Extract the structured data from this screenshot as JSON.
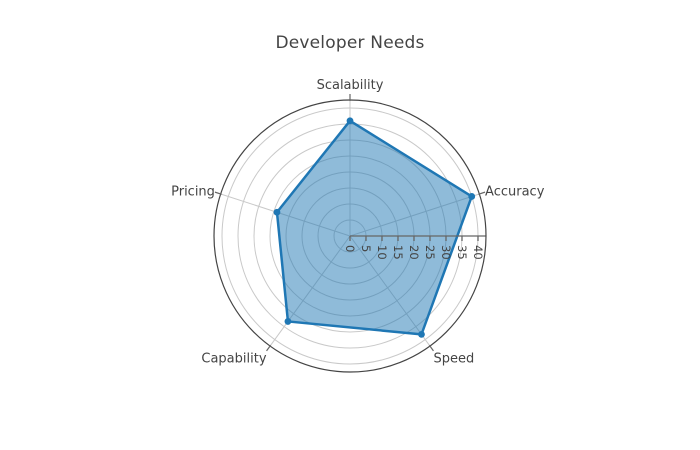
{
  "title": "Developer Needs",
  "chart_data": {
    "type": "radar",
    "title": "Developer Needs",
    "categories": [
      "Scalability",
      "Accuracy",
      "Speed",
      "Capability",
      "Pricing"
    ],
    "series": [
      {
        "name": "Developer Needs",
        "values": [
          36,
          40,
          38,
          33,
          24
        ]
      }
    ],
    "radial_axis": {
      "ticks": [
        0,
        5,
        10,
        15,
        20,
        25,
        30,
        35,
        40
      ],
      "range": [
        0,
        42.5
      ],
      "tick_label_rotation_deg": 90,
      "axis_angle_deg": 0
    },
    "start_angle_deg": 90,
    "direction": "clockwise",
    "grid": true,
    "legend": false,
    "colors": {
      "line": "#1f77b4",
      "fill": "rgba(31,119,180,0.5)",
      "grid": "#c9c9c9",
      "axis_line": "#666666",
      "outer_line": "#444444",
      "text": "#444444"
    }
  }
}
